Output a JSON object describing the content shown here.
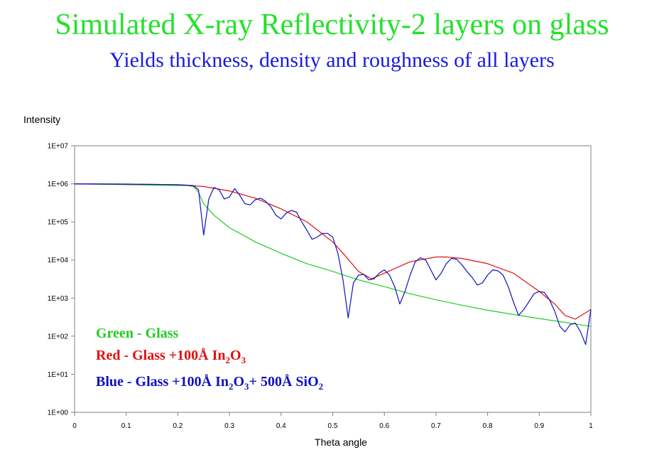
{
  "title": "Simulated X-ray Reflectivity-2 layers on glass",
  "subtitle": "Yields thickness, density and roughness of all layers",
  "chart_data": {
    "type": "line",
    "ylabel": "Intensity",
    "xlabel": "Theta angle",
    "yscale": "log",
    "xlim": [
      0,
      1
    ],
    "ylim": [
      1,
      10000000
    ],
    "grid": false,
    "legend_position": "bottom-left",
    "x_ticks": [
      "0",
      "0.1",
      "0.2",
      "0.3",
      "0.4",
      "0.5",
      "0.6",
      "0.7",
      "0.8",
      "0.9",
      "1"
    ],
    "y_ticks": [
      "1E+00",
      "1E+01",
      "1E+02",
      "1E+03",
      "1E+04",
      "1E+05",
      "1E+06",
      "1E+07"
    ],
    "legend": [
      {
        "prefix": "Green - Glass",
        "parts": [],
        "color": "#22cc22"
      },
      {
        "prefix": "Red - Glass +100Å In",
        "parts": [
          [
            "2",
            "O"
          ],
          [
            "3",
            ""
          ]
        ],
        "color": "#e01010"
      },
      {
        "prefix": "Blue - Glass +100Å In",
        "parts": [
          [
            "2",
            "O"
          ],
          [
            "3",
            "+ 500Å SiO"
          ],
          [
            "2",
            ""
          ]
        ],
        "color": "#1010c0"
      }
    ],
    "series": [
      {
        "color": "#22cc22",
        "x": [
          0,
          0.1,
          0.2,
          0.22,
          0.23,
          0.24,
          0.25,
          0.27,
          0.3,
          0.35,
          0.4,
          0.45,
          0.5,
          0.55,
          0.6,
          0.65,
          0.7,
          0.75,
          0.8,
          0.85,
          0.9,
          0.95,
          1.0
        ],
        "y": [
          1000000,
          950000,
          900000,
          900000,
          850000,
          600000,
          300000,
          150000,
          70000,
          30000,
          15000,
          8000,
          5000,
          3000,
          2000,
          1300,
          900,
          650,
          480,
          370,
          290,
          230,
          180
        ]
      },
      {
        "color": "#e01010",
        "x": [
          0,
          0.1,
          0.2,
          0.25,
          0.3,
          0.35,
          0.4,
          0.45,
          0.5,
          0.52,
          0.55,
          0.575,
          0.6,
          0.65,
          0.7,
          0.72,
          0.75,
          0.8,
          0.85,
          0.9,
          0.93,
          0.95,
          0.97,
          1.0
        ],
        "y": [
          1000000,
          980000,
          950000,
          850000,
          650000,
          420000,
          220000,
          100000,
          30000,
          15000,
          5000,
          3200,
          4500,
          9000,
          12000,
          12000,
          11000,
          8000,
          4500,
          1500,
          700,
          350,
          280,
          500
        ]
      },
      {
        "color": "#1010c0",
        "x": [
          0,
          0.1,
          0.2,
          0.23,
          0.24,
          0.25,
          0.26,
          0.27,
          0.28,
          0.29,
          0.3,
          0.31,
          0.32,
          0.33,
          0.34,
          0.35,
          0.36,
          0.37,
          0.38,
          0.39,
          0.4,
          0.41,
          0.42,
          0.43,
          0.44,
          0.45,
          0.46,
          0.47,
          0.48,
          0.49,
          0.5,
          0.51,
          0.52,
          0.53,
          0.54,
          0.55,
          0.56,
          0.57,
          0.58,
          0.59,
          0.6,
          0.61,
          0.62,
          0.63,
          0.64,
          0.65,
          0.66,
          0.67,
          0.68,
          0.69,
          0.7,
          0.71,
          0.72,
          0.73,
          0.74,
          0.75,
          0.76,
          0.77,
          0.78,
          0.79,
          0.8,
          0.81,
          0.82,
          0.83,
          0.84,
          0.85,
          0.86,
          0.87,
          0.88,
          0.89,
          0.9,
          0.91,
          0.92,
          0.93,
          0.94,
          0.95,
          0.96,
          0.97,
          0.98,
          0.99,
          1.0
        ],
        "y": [
          1000000,
          980000,
          950000,
          900000,
          700000,
          45000,
          400000,
          800000,
          700000,
          400000,
          450000,
          750000,
          500000,
          300000,
          280000,
          380000,
          420000,
          350000,
          250000,
          150000,
          120000,
          170000,
          200000,
          180000,
          100000,
          60000,
          35000,
          40000,
          50000,
          50000,
          40000,
          15000,
          3000,
          300,
          2500,
          4000,
          4200,
          3000,
          3200,
          4500,
          5500,
          4000,
          2000,
          700,
          1500,
          4000,
          9000,
          11500,
          10000,
          5500,
          3000,
          4500,
          8000,
          11000,
          10500,
          7500,
          5000,
          3500,
          2200,
          2500,
          4000,
          5500,
          5200,
          4000,
          2000,
          800,
          350,
          500,
          800,
          1300,
          1500,
          1400,
          900,
          450,
          180,
          130,
          200,
          220,
          130,
          60,
          500
        ]
      }
    ]
  }
}
